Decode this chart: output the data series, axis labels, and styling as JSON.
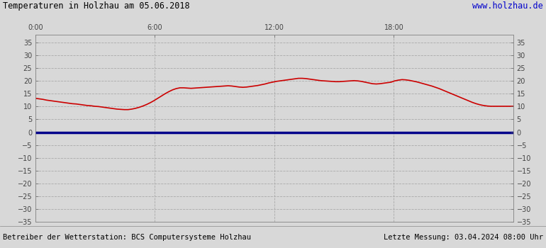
{
  "title": "Temperaturen in Holzhau am 05.06.2018",
  "website": "www.holzhau.de",
  "footer_left": "Betreiber der Wetterstation: BCS Computersysteme Holzhau",
  "footer_right": "Letzte Messung: 03.04.2024 08:00 Uhr",
  "bg_color": "#d8d8d8",
  "plot_bg_color": "#d8d8d8",
  "grid_color": "#aaaaaa",
  "line_color": "#cc0000",
  "zero_line_color": "#00008b",
  "title_color": "#000000",
  "website_color": "#0000cc",
  "footer_color": "#000000",
  "ylim": [
    -35,
    38
  ],
  "yticks": [
    -35,
    -30,
    -25,
    -20,
    -15,
    -10,
    -5,
    0,
    5,
    10,
    15,
    20,
    25,
    30,
    35
  ],
  "xtick_labels": [
    "0:00",
    "6:00",
    "12:00",
    "18:00"
  ],
  "xtick_positions": [
    0.0,
    0.25,
    0.5,
    0.75
  ],
  "x_vlines": [
    0.0,
    0.25,
    0.5,
    0.75,
    1.0
  ],
  "temperature_data": [
    13.2,
    13.0,
    12.8,
    12.5,
    12.3,
    12.1,
    11.9,
    11.7,
    11.5,
    11.3,
    11.1,
    11.0,
    10.8,
    10.6,
    10.4,
    10.3,
    10.1,
    10.0,
    9.8,
    9.6,
    9.4,
    9.2,
    9.0,
    8.9,
    8.8,
    8.8,
    9.0,
    9.3,
    9.7,
    10.2,
    10.8,
    11.5,
    12.3,
    13.2,
    14.1,
    15.0,
    15.8,
    16.5,
    17.0,
    17.3,
    17.3,
    17.2,
    17.1,
    17.2,
    17.3,
    17.4,
    17.5,
    17.6,
    17.7,
    17.8,
    17.9,
    18.0,
    18.1,
    18.0,
    17.8,
    17.6,
    17.5,
    17.6,
    17.8,
    18.0,
    18.2,
    18.5,
    18.8,
    19.2,
    19.5,
    19.8,
    20.0,
    20.2,
    20.4,
    20.6,
    20.8,
    21.0,
    21.0,
    20.9,
    20.7,
    20.5,
    20.3,
    20.1,
    20.0,
    19.9,
    19.8,
    19.7,
    19.7,
    19.8,
    19.9,
    20.0,
    20.1,
    20.0,
    19.8,
    19.5,
    19.2,
    18.9,
    18.8,
    18.9,
    19.1,
    19.3,
    19.5,
    20.0,
    20.3,
    20.5,
    20.4,
    20.2,
    19.9,
    19.6,
    19.2,
    18.8,
    18.4,
    18.0,
    17.5,
    17.0,
    16.4,
    15.8,
    15.2,
    14.6,
    14.0,
    13.4,
    12.8,
    12.2,
    11.6,
    11.1,
    10.7,
    10.4,
    10.2,
    10.1,
    10.1,
    10.1,
    10.1,
    10.1,
    10.1,
    10.1
  ]
}
